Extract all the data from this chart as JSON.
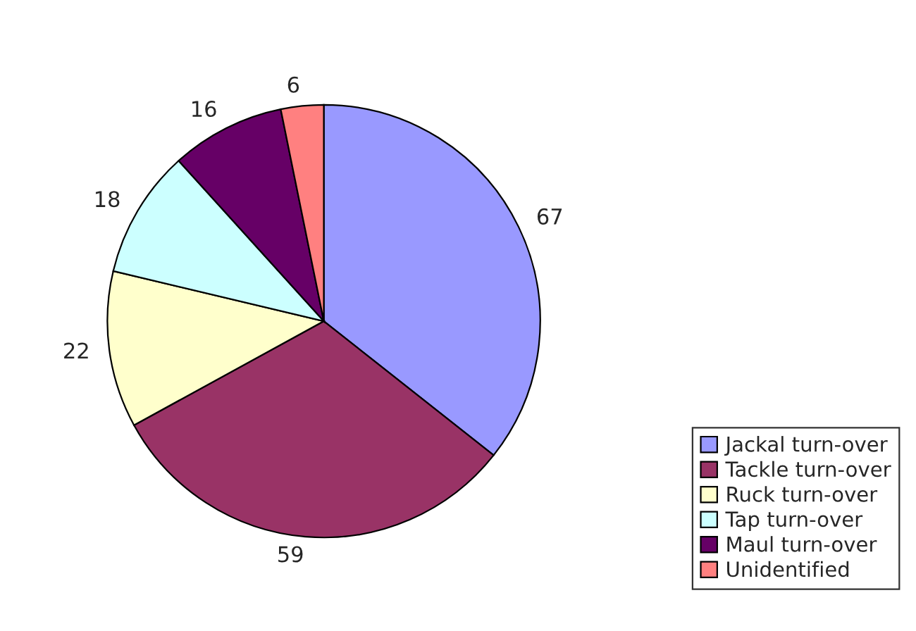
{
  "chart_data": {
    "type": "pie",
    "categories": [
      "Jackal turn-over",
      "Tackle turn-over",
      "Ruck turn-over",
      "Tap turn-over",
      "Maul turn-over",
      "Unidentified"
    ],
    "values": [
      67,
      59,
      22,
      18,
      16,
      6
    ],
    "colors": [
      "#9999ff",
      "#993366",
      "#ffffcc",
      "#ccffff",
      "#660066",
      "#ff8080"
    ],
    "data_labels": true,
    "legend": "bottom right"
  }
}
